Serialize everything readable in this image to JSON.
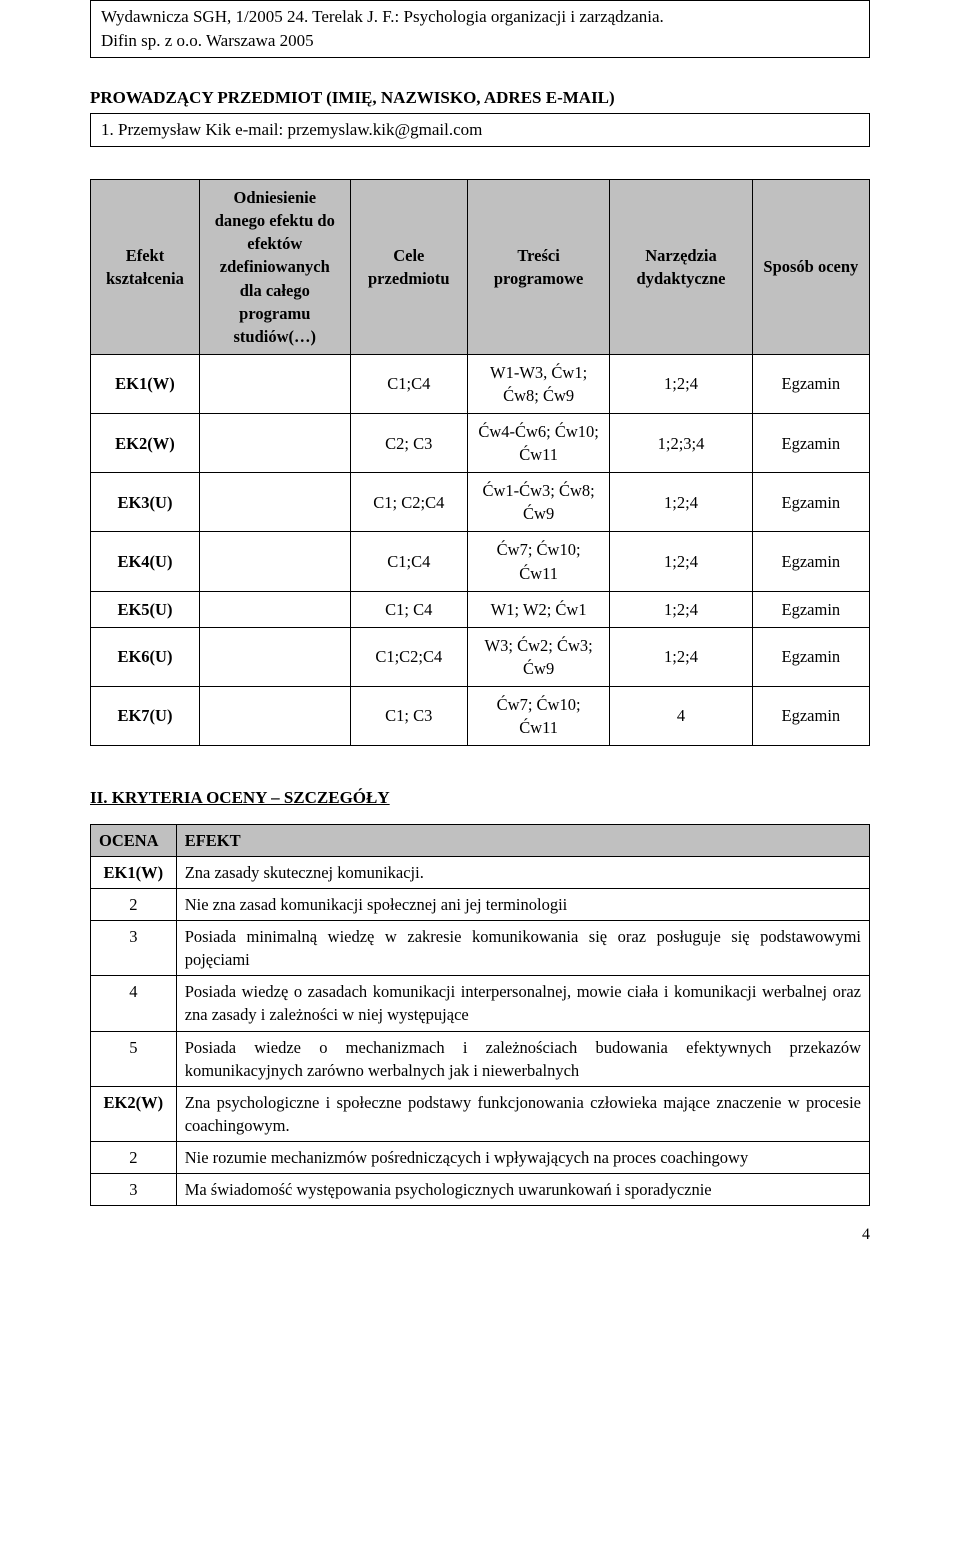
{
  "top_box": {
    "line1": "Wydawnicza SGH, 1/2005 24. Terelak J. F.: Psychologia organizacji i zarządzania.",
    "line2": "Difin sp. z o.o. Warszawa 2005"
  },
  "instructor_heading": "PROWADZĄCY PRZEDMIOT (IMIĘ, NAZWISKO, ADRES E-MAIL)",
  "instructor_line": "1. Przemysław Kik e-mail: przemyslaw.kik@gmail.com",
  "matrix": {
    "headers": {
      "effect": "Efekt kształcenia",
      "ref": "Odniesienie danego efektu do efektów zdefiniowanych dla całego programu studiów(…)",
      "goals": "Cele przedmiotu",
      "content": "Treści programowe",
      "tools": "Narzędzia dydaktyczne",
      "grade": "Sposób oceny"
    },
    "rows": [
      {
        "effect": "EK1(W)",
        "ref": "",
        "goals": "C1;C4",
        "content": "W1-W3, Ćw1; Ćw8; Ćw9",
        "tools": "1;2;4",
        "grade": "Egzamin"
      },
      {
        "effect": "EK2(W)",
        "ref": "",
        "goals": "C2; C3",
        "content": "Ćw4-Ćw6; Ćw10; Ćw11",
        "tools": "1;2;3;4",
        "grade": "Egzamin"
      },
      {
        "effect": "EK3(U)",
        "ref": "",
        "goals": "C1; C2;C4",
        "content": "Ćw1-Ćw3; Ćw8; Ćw9",
        "tools": "1;2;4",
        "grade": "Egzamin"
      },
      {
        "effect": "EK4(U)",
        "ref": "",
        "goals": "C1;C4",
        "content": "Ćw7; Ćw10; Ćw11",
        "tools": "1;2;4",
        "grade": "Egzamin"
      },
      {
        "effect": "EK5(U)",
        "ref": "",
        "goals": "C1; C4",
        "content": "W1; W2; Ćw1",
        "tools": "1;2;4",
        "grade": "Egzamin"
      },
      {
        "effect": "EK6(U)",
        "ref": "",
        "goals": "C1;C2;C4",
        "content": "W3; Ćw2; Ćw3; Ćw9",
        "tools": "1;2;4",
        "grade": "Egzamin"
      },
      {
        "effect": "EK7(U)",
        "ref": "",
        "goals": "C1; C3",
        "content": "Ćw7; Ćw10; Ćw11",
        "tools": "4",
        "grade": "Egzamin"
      }
    ]
  },
  "criteria_heading": "II. KRYTERIA OCENY – SZCZEGÓŁY",
  "criteria": {
    "headers": {
      "grade": "OCENA",
      "effect": "EFEKT"
    },
    "rows": [
      {
        "grade": "EK1(W)",
        "bold": true,
        "desc": "Zna zasady skutecznej komunikacji."
      },
      {
        "grade": "2",
        "bold": false,
        "desc": "Nie zna zasad komunikacji społecznej ani jej terminologii"
      },
      {
        "grade": "3",
        "bold": false,
        "desc": "Posiada minimalną wiedzę w zakresie komunikowania się oraz posługuje się podstawowymi pojęciami"
      },
      {
        "grade": "4",
        "bold": false,
        "desc": "Posiada wiedzę o zasadach komunikacji interpersonalnej, mowie ciała i komunikacji werbalnej oraz zna zasady i zależności w niej występujące"
      },
      {
        "grade": "5",
        "bold": false,
        "desc": "Posiada wiedze o mechanizmach i zależnościach budowania efektywnych przekazów komunikacyjnych zarówno werbalnych jak i niewerbalnych"
      },
      {
        "grade": "EK2(W)",
        "bold": true,
        "desc": "Zna psychologiczne i społeczne podstawy funkcjonowania człowieka mające znaczenie w procesie coachingowym."
      },
      {
        "grade": "2",
        "bold": false,
        "desc": "Nie rozumie mechanizmów pośredniczących i wpływających na proces coachingowy"
      },
      {
        "grade": "3",
        "bold": false,
        "desc": "Ma świadomość występowania psychologicznych uwarunkowań i sporadycznie"
      }
    ]
  },
  "page_number": "4",
  "colors": {
    "header_bg": "#c0c0c0",
    "border": "#000000",
    "text": "#000000",
    "bg": "#ffffff"
  }
}
